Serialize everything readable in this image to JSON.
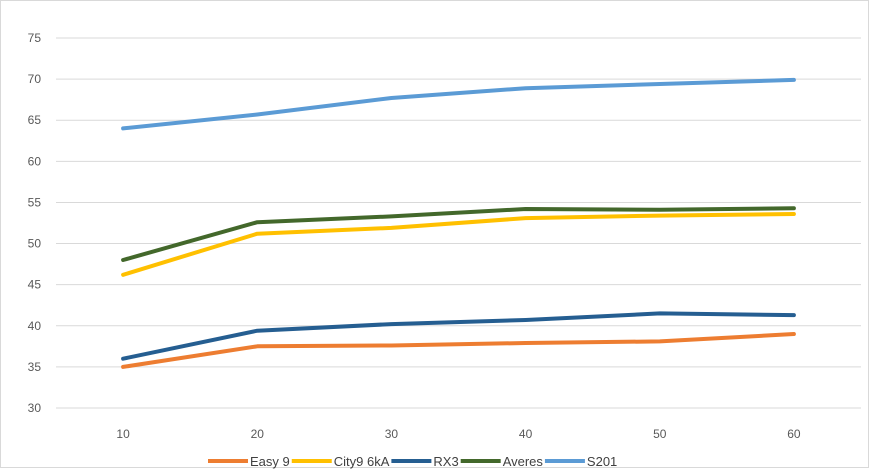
{
  "chart_data": {
    "type": "line",
    "title": "",
    "xlabel": "",
    "ylabel": "",
    "x": [
      10,
      20,
      30,
      40,
      50,
      60
    ],
    "x_tick_labels": [
      "10",
      "20",
      "30",
      "40",
      "50",
      "60"
    ],
    "ylim": [
      30,
      75
    ],
    "y_tick_labels": [
      "30",
      "35",
      "40",
      "45",
      "50",
      "55",
      "60",
      "65",
      "70",
      "75"
    ],
    "grid": "horizontal",
    "legend_position": "bottom",
    "series": [
      {
        "name": "Easy 9",
        "color": "#ED7D31",
        "values": [
          35.0,
          37.5,
          37.6,
          37.9,
          38.1,
          39.0
        ]
      },
      {
        "name": "City9 6kA",
        "color": "#FFC000",
        "values": [
          46.2,
          51.2,
          51.9,
          53.1,
          53.4,
          53.6
        ]
      },
      {
        "name": "RX3",
        "color": "#255E91",
        "values": [
          36.0,
          39.4,
          40.2,
          40.7,
          41.5,
          41.3
        ]
      },
      {
        "name": "Averes",
        "color": "#43682B",
        "values": [
          48.0,
          52.6,
          53.3,
          54.2,
          54.1,
          54.3
        ]
      },
      {
        "name": "S201",
        "color": "#5B9BD5",
        "values": [
          64.0,
          65.7,
          67.7,
          68.9,
          69.4,
          69.9
        ]
      }
    ]
  }
}
